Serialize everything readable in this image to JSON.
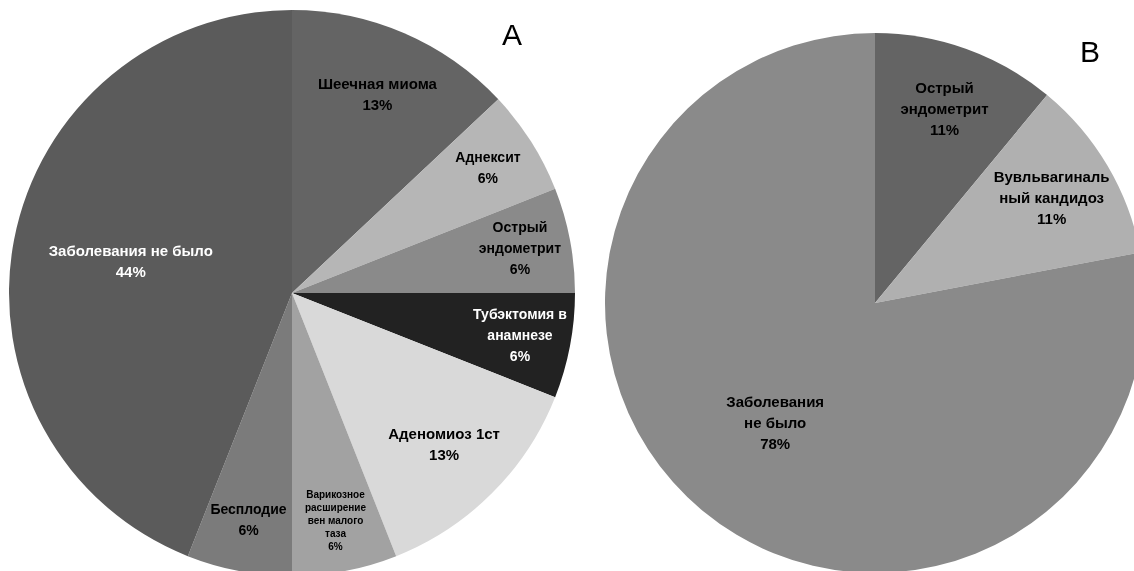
{
  "chart_data": [
    {
      "type": "pie",
      "title": "A",
      "categories": [
        "Шеечная миома",
        "Аднексит",
        "Острый\nэндометрит",
        "Тубэктомия в\nанамнезе",
        "Аденомиоз 1ст",
        "Варикозное\nрасширение\nвен малого\nтаза",
        "Бесплодие",
        "Заболевания не было"
      ],
      "values": [
        13,
        6,
        6,
        6,
        13,
        6,
        6,
        44
      ],
      "value_labels": [
        "13%",
        "6%",
        "6%",
        "6%",
        "13%",
        "6%",
        "6%",
        "44%"
      ],
      "colors": [
        "#646464",
        "#b6b6b6",
        "#8a8a8a",
        "#222222",
        "#d9d9d9",
        "#a2a2a2",
        "#7b7b7b",
        "#5b5b5b"
      ]
    },
    {
      "type": "pie",
      "title": "B",
      "categories": [
        "Острый\nэндометрит",
        "Вувльвагиналь\nный кандидоз",
        "Заболевания\nне было"
      ],
      "values": [
        11,
        11,
        78
      ],
      "value_labels": [
        "11%",
        "11%",
        "78%"
      ],
      "colors": [
        "#646464",
        "#b0b0b0",
        "#8a8a8a"
      ]
    }
  ]
}
